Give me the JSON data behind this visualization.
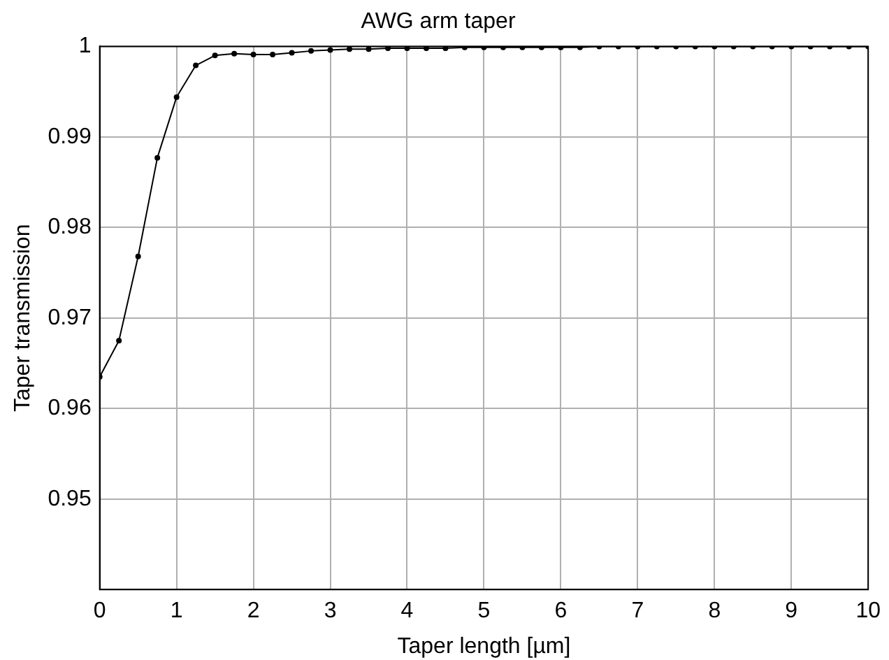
{
  "chart_data": {
    "type": "line",
    "title": "AWG arm taper",
    "xlabel": "Taper length [µm]",
    "ylabel": "Taper transmission",
    "x": [
      0,
      0.25,
      0.5,
      0.75,
      1,
      1.25,
      1.5,
      1.75,
      2,
      2.25,
      2.5,
      2.75,
      3,
      3.25,
      3.5,
      3.75,
      4,
      4.25,
      4.5,
      4.75,
      5,
      5.25,
      5.5,
      5.75,
      6,
      6.25,
      6.5,
      6.75,
      7,
      7.25,
      7.5,
      7.75,
      8,
      8.25,
      8.5,
      8.75,
      9,
      9.25,
      9.5,
      9.75,
      10
    ],
    "series": [
      {
        "color": "#000000",
        "values": [
          0.9635,
          0.9675,
          0.9768,
          0.9877,
          0.9944,
          0.9979,
          0.999,
          0.9992,
          0.9991,
          0.9991,
          0.9993,
          0.9995,
          0.9996,
          0.9997,
          0.9997,
          0.9998,
          0.9998,
          0.9998,
          0.9998,
          0.9999,
          0.9999,
          0.9999,
          0.9999,
          0.9999,
          0.9999,
          0.9999,
          1,
          1,
          1,
          1,
          1,
          1,
          1,
          1,
          1,
          1,
          1,
          1,
          1,
          1,
          1
        ]
      }
    ],
    "xlim": [
      0,
      10
    ],
    "xticks": [
      0,
      1,
      2,
      3,
      4,
      5,
      6,
      7,
      8,
      9,
      10
    ],
    "ylim": [
      0.94,
      1
    ],
    "yticks": [
      0.95,
      0.96,
      0.97,
      0.98,
      0.99,
      1
    ],
    "grid": true,
    "legend": false,
    "marker": "circle",
    "line_style": "solid"
  }
}
